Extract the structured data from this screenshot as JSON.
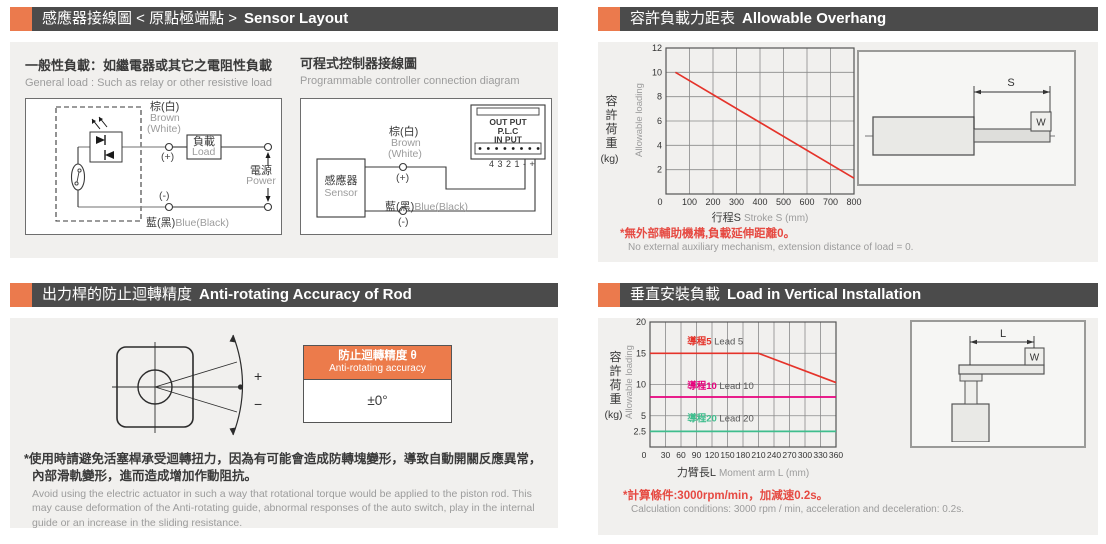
{
  "colors": {
    "header_bg": "#4b4b4b",
    "accent_orange": "#eb7a4d",
    "panel_bg": "#f1f0ee",
    "note_red": "#e64a42",
    "line_red": "#e5332a",
    "line_magenta": "#e6007d",
    "line_green": "#3fbd8d"
  },
  "sections": {
    "sensor_layout": {
      "title_zh": "感應器接線圖 < 原點極端點 >",
      "title_en": "Sensor Layout",
      "general_load": {
        "heading_zh": "一般性負載：如繼電器或其它之電阻性負載",
        "heading_en": "General load : Such as relay or other resistive load",
        "brown_zh": "棕(白)",
        "brown_en": "Brown",
        "brown_en2": "(White)",
        "plus": "(+)",
        "minus": "(-)",
        "load_zh": "負載",
        "load_en": "Load",
        "power_zh": "電源",
        "power_en": "Power",
        "blue_zh": "藍(黑)",
        "blue_en": "Blue(Black)"
      },
      "plc": {
        "heading_zh": "可程式控制器接線圖",
        "heading_en": "Programmable controller connection diagram",
        "sensor_zh": "感應器",
        "sensor_en": "Sensor",
        "brown_zh": "棕(白)",
        "brown_en": "Brown",
        "brown_en2": "(White)",
        "plus": "(+)",
        "minus": "(-)",
        "blue_zh": "藍(黑)",
        "blue_en": "Blue(Black)",
        "out_put": "OUT PUT",
        "plc_name": "P.L.C",
        "in_put": "IN PUT",
        "terminals": "4 3 2 1 - +"
      }
    },
    "allowable_overhang": {
      "title_zh": "容許負載力距表",
      "title_en": "Allowable Overhang",
      "note_zh": "*無外部輔助機構,負載延伸距離0。",
      "note_en": "No external auxiliary mechanism, extension distance of load = 0.",
      "figure": {
        "dim": "S",
        "weight": "W"
      }
    },
    "anti_rotating": {
      "title_zh": "出力桿的防止迴轉精度",
      "title_en": "Anti-rotating Accuracy of Rod",
      "plus": "+",
      "minus": "−",
      "table": {
        "header_zh": "防止迴轉精度 θ",
        "header_en": "Anti-rotating accuracy",
        "value": "±0°"
      },
      "note_zh1": "*使用時請避免活塞桿承受迴轉扭力，因為有可能會造成防轉塊變形，導致自動開關反應異常，",
      "note_zh2": "內部滑軌變形，進而造成增加作動阻抗。",
      "note_en": "Avoid using the electric actuator in such a way that rotational torque would be applied to the piston rod. This may cause deformation of the Anti-rotating guide, abnormal responses of the auto switch, play in the internal guide or an increase in the sliding resistance."
    },
    "vertical_installation": {
      "title_zh": "垂直安裝負載",
      "title_en": "Load in Vertical Installation",
      "note_zh": "*計算條件:3000rpm/min，加減速0.2s。",
      "note_en": "Calculation conditions: 3000 rpm / min, acceleration and deceleration: 0.2s.",
      "figure": {
        "dim": "L",
        "weight": "W"
      }
    }
  },
  "chart_data": [
    {
      "id": "overhang",
      "type": "line",
      "title": "Allowable Overhang",
      "xlabel_zh": "行程S",
      "xlabel_en": "Stroke S (mm)",
      "ylabel_zh": "容許荷重",
      "ylabel_unit": "(kg)",
      "ylabel_en": "Allowable loading",
      "xlim": [
        0,
        800
      ],
      "ylim": [
        0,
        12
      ],
      "xticks": [
        0,
        100,
        200,
        300,
        400,
        500,
        600,
        700,
        800
      ],
      "yticks": [
        0,
        2,
        4,
        6,
        8,
        10,
        12
      ],
      "grid": true,
      "legend_position": "none",
      "series": [
        {
          "name": "Allowable loading",
          "color": "#e5332a",
          "points": [
            [
              40,
              10
            ],
            [
              800,
              1.3
            ]
          ]
        }
      ]
    },
    {
      "id": "vertical-load",
      "type": "line",
      "title": "Load in Vertical Installation",
      "xlabel_zh": "力臂長L",
      "xlabel_en": "Moment arm L (mm)",
      "ylabel_zh": "容許荷重",
      "ylabel_unit": "(kg)",
      "ylabel_en": "Allowable loading",
      "xlim": [
        0,
        360
      ],
      "ylim": [
        0,
        20
      ],
      "xticks": [
        0,
        30,
        60,
        90,
        120,
        150,
        180,
        210,
        240,
        270,
        300,
        330,
        360
      ],
      "yticks": [
        0,
        2.5,
        5,
        10,
        15,
        20
      ],
      "grid": true,
      "legend_position": "inline-labels",
      "series": [
        {
          "name_zh": "導程5",
          "name_en": "Lead 5",
          "color": "#e5332a",
          "points": [
            [
              0,
              15
            ],
            [
              210,
              15
            ],
            [
              360,
              10.3
            ]
          ],
          "label_at": [
            72,
            16.4
          ]
        },
        {
          "name_zh": "導程10",
          "name_en": "Lead 10",
          "color": "#e6007d",
          "points": [
            [
              0,
              8
            ],
            [
              360,
              8
            ]
          ],
          "label_at": [
            72,
            9.3
          ]
        },
        {
          "name_zh": "導程20",
          "name_en": "Lead 20",
          "color": "#3fbd8d",
          "points": [
            [
              0,
              2.5
            ],
            [
              360,
              2.5
            ]
          ],
          "label_at": [
            72,
            4.1
          ]
        }
      ]
    }
  ]
}
